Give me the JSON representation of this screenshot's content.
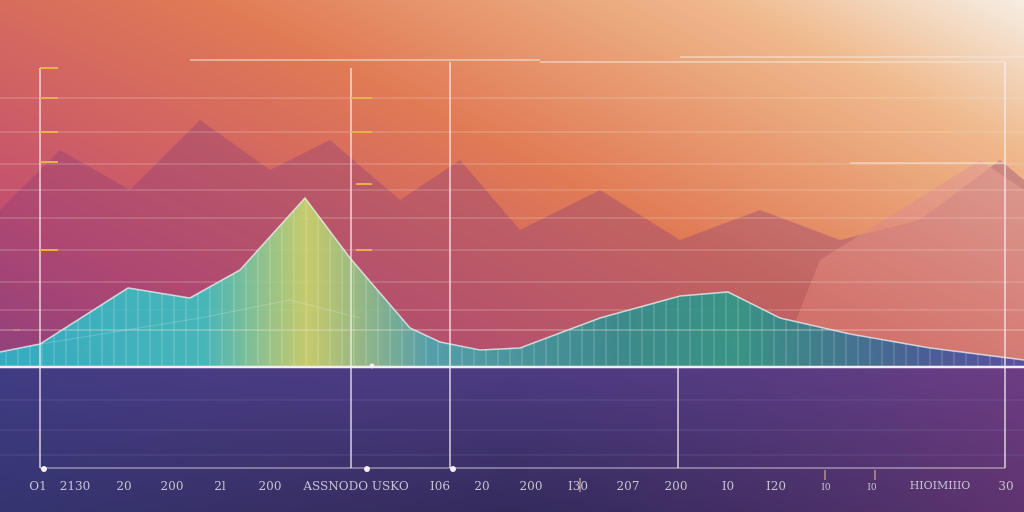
{
  "colors": {
    "background_top_right": "#f3ece2",
    "background_mid": "#e07a55",
    "background_left": "#9a3f7a",
    "floor": "#3a2f6e",
    "wave_left": "#2bb6c8",
    "wave_peak": "#c8d86a",
    "wave_right": "#2a7f86",
    "tick_marks": "#e8b04a",
    "guide_lines": "#f4e6d8"
  },
  "axis_labels": [
    "O1",
    "2130",
    "20",
    "200",
    "2l",
    "200",
    "ASSNODO USKO",
    "I06",
    "20",
    "200",
    "I30",
    "207",
    "200",
    "I0",
    "I20",
    "I0",
    "I0",
    "HIOIMIIIO",
    "30"
  ]
}
